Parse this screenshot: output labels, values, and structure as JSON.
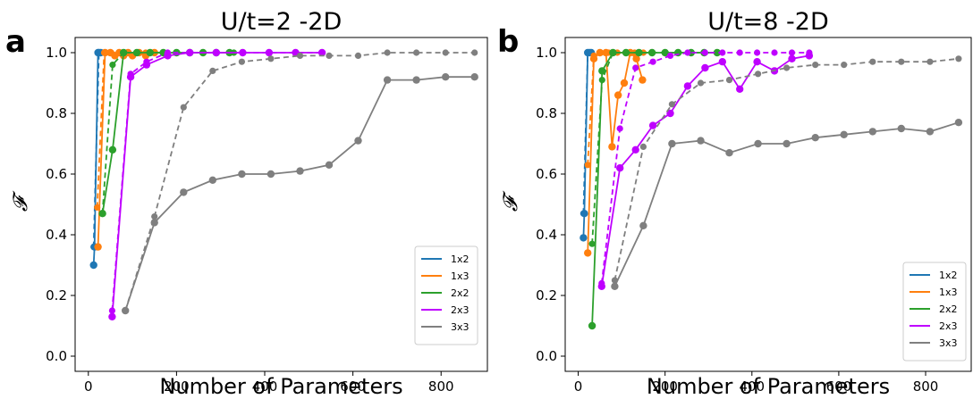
{
  "chart_data": [
    {
      "type": "line",
      "panel_label": "a",
      "title": "U/t=2 -2D",
      "xlabel": "Number of Parameters",
      "ylabel": "𝓕",
      "xlim": [
        -30,
        905
      ],
      "ylim": [
        -0.05,
        1.05
      ],
      "xticks": [
        0,
        200,
        400,
        600,
        800
      ],
      "yticks": [
        0.0,
        0.2,
        0.4,
        0.6,
        0.8,
        1.0
      ],
      "xtick_labels": [
        "0",
        "200",
        "400",
        "600",
        "800"
      ],
      "ytick_labels": [
        "0.0",
        "0.2",
        "0.4",
        "0.6",
        "0.8",
        "1.0"
      ],
      "legend_position": "lower-right",
      "series": [
        {
          "name": "1x2",
          "color": "#1f77b4",
          "solid": [
            [
              12,
              0.3
            ],
            [
              14,
              0.36
            ],
            [
              22,
              1.0
            ],
            [
              24,
              1.0
            ],
            [
              28,
              1.0
            ]
          ],
          "dashed": [
            [
              12,
              0.36
            ],
            [
              24,
              1.0
            ],
            [
              30,
              1.0
            ]
          ]
        },
        {
          "name": "1x3",
          "color": "#ff7f0e",
          "solid": [
            [
              22,
              0.36
            ],
            [
              38,
              1.0
            ],
            [
              50,
              1.0
            ],
            [
              60,
              0.99
            ],
            [
              70,
              1.0
            ],
            [
              80,
              0.99
            ],
            [
              90,
              1.0
            ],
            [
              100,
              0.99
            ],
            [
              115,
              1.0
            ],
            [
              130,
              0.99
            ],
            [
              150,
              1.0
            ]
          ],
          "dashed": [
            [
              20,
              0.49
            ],
            [
              36,
              1.0
            ],
            [
              52,
              1.0
            ],
            [
              70,
              1.0
            ],
            [
              90,
              1.0
            ],
            [
              110,
              1.0
            ],
            [
              130,
              1.0
            ],
            [
              150,
              1.0
            ]
          ]
        },
        {
          "name": "2x2",
          "color": "#2ca02c",
          "solid": [
            [
              32,
              0.47
            ],
            [
              55,
              0.68
            ],
            [
              80,
              1.0
            ],
            [
              110,
              1.0
            ],
            [
              140,
              1.0
            ],
            [
              170,
              1.0
            ],
            [
              200,
              1.0
            ],
            [
              230,
              1.0
            ],
            [
              260,
              1.0
            ],
            [
              290,
              1.0
            ],
            [
              320,
              1.0
            ]
          ],
          "dashed": [
            [
              32,
              0.47
            ],
            [
              55,
              0.96
            ],
            [
              80,
              1.0
            ],
            [
              110,
              1.0
            ],
            [
              140,
              1.0
            ],
            [
              170,
              1.0
            ],
            [
              200,
              1.0
            ],
            [
              230,
              1.0
            ],
            [
              260,
              1.0
            ],
            [
              290,
              1.0
            ],
            [
              320,
              1.0
            ],
            [
              330,
              1.0
            ]
          ]
        },
        {
          "name": "2x3",
          "color": "#bf00ff",
          "solid": [
            [
              54,
              0.13
            ],
            [
              96,
              0.92
            ],
            [
              132,
              0.96
            ],
            [
              180,
              0.99
            ],
            [
              230,
              1.0
            ],
            [
              290,
              1.0
            ],
            [
              350,
              1.0
            ],
            [
              410,
              1.0
            ],
            [
              470,
              1.0
            ],
            [
              530,
              1.0
            ]
          ],
          "dashed": [
            [
              54,
              0.15
            ],
            [
              96,
              0.93
            ],
            [
              132,
              0.97
            ],
            [
              180,
              1.0
            ],
            [
              230,
              1.0
            ],
            [
              290,
              1.0
            ],
            [
              350,
              1.0
            ],
            [
              410,
              1.0
            ],
            [
              470,
              1.0
            ],
            [
              530,
              1.0
            ]
          ]
        },
        {
          "name": "3x3",
          "color": "#7f7f7f",
          "solid": [
            [
              84,
              0.15
            ],
            [
              150,
              0.44
            ],
            [
              216,
              0.54
            ],
            [
              282,
              0.58
            ],
            [
              348,
              0.6
            ],
            [
              414,
              0.6
            ],
            [
              480,
              0.61
            ],
            [
              546,
              0.63
            ],
            [
              612,
              0.71
            ],
            [
              678,
              0.91
            ],
            [
              744,
              0.91
            ],
            [
              810,
              0.92
            ],
            [
              876,
              0.92
            ]
          ],
          "dashed": [
            [
              84,
              0.15
            ],
            [
              150,
              0.46
            ],
            [
              216,
              0.82
            ],
            [
              282,
              0.94
            ],
            [
              348,
              0.97
            ],
            [
              414,
              0.98
            ],
            [
              480,
              0.99
            ],
            [
              546,
              0.99
            ],
            [
              612,
              0.99
            ],
            [
              678,
              1.0
            ],
            [
              744,
              1.0
            ],
            [
              810,
              1.0
            ],
            [
              876,
              1.0
            ]
          ]
        }
      ]
    },
    {
      "type": "line",
      "panel_label": "b",
      "title": "U/t=8 -2D",
      "xlabel": "Number of Parameters",
      "ylabel": "𝓕",
      "xlim": [
        -30,
        905
      ],
      "ylim": [
        -0.05,
        1.05
      ],
      "xticks": [
        0,
        200,
        400,
        600,
        800
      ],
      "yticks": [
        0.0,
        0.2,
        0.4,
        0.6,
        0.8,
        1.0
      ],
      "xtick_labels": [
        "0",
        "200",
        "400",
        "600",
        "800"
      ],
      "ytick_labels": [
        "0.0",
        "0.2",
        "0.4",
        "0.6",
        "0.8",
        "1.0"
      ],
      "legend_position": "lower-right",
      "series": [
        {
          "name": "1x2",
          "color": "#1f77b4",
          "solid": [
            [
              12,
              0.39
            ],
            [
              14,
              0.47
            ],
            [
              22,
              1.0
            ],
            [
              26,
              1.0
            ],
            [
              30,
              1.0
            ]
          ],
          "dashed": [
            [
              12,
              0.47
            ],
            [
              22,
              1.0
            ],
            [
              30,
              1.0
            ]
          ]
        },
        {
          "name": "1x3",
          "color": "#ff7f0e",
          "solid": [
            [
              22,
              0.34
            ],
            [
              36,
              0.98
            ],
            [
              50,
              1.0
            ],
            [
              64,
              1.0
            ],
            [
              78,
              0.69
            ],
            [
              92,
              0.86
            ],
            [
              106,
              0.9
            ],
            [
              120,
              1.0
            ],
            [
              134,
              0.98
            ],
            [
              148,
              0.91
            ]
          ],
          "dashed": [
            [
              22,
              0.63
            ],
            [
              36,
              0.99
            ],
            [
              52,
              1.0
            ],
            [
              70,
              1.0
            ],
            [
              90,
              1.0
            ],
            [
              110,
              1.0
            ],
            [
              130,
              1.0
            ],
            [
              150,
              1.0
            ]
          ]
        },
        {
          "name": "2x2",
          "color": "#2ca02c",
          "solid": [
            [
              32,
              0.1
            ],
            [
              55,
              0.94
            ],
            [
              80,
              1.0
            ],
            [
              110,
              1.0
            ],
            [
              140,
              1.0
            ],
            [
              170,
              1.0
            ],
            [
              200,
              1.0
            ],
            [
              230,
              1.0
            ],
            [
              260,
              1.0
            ],
            [
              290,
              1.0
            ],
            [
              320,
              1.0
            ]
          ],
          "dashed": [
            [
              32,
              0.37
            ],
            [
              55,
              0.91
            ],
            [
              80,
              1.0
            ],
            [
              110,
              1.0
            ],
            [
              140,
              1.0
            ],
            [
              170,
              1.0
            ],
            [
              200,
              1.0
            ],
            [
              230,
              1.0
            ],
            [
              260,
              1.0
            ],
            [
              290,
              1.0
            ],
            [
              320,
              1.0
            ]
          ]
        },
        {
          "name": "2x3",
          "color": "#bf00ff",
          "solid": [
            [
              54,
              0.23
            ],
            [
              96,
              0.62
            ],
            [
              132,
              0.68
            ],
            [
              172,
              0.76
            ],
            [
              212,
              0.8
            ],
            [
              252,
              0.89
            ],
            [
              292,
              0.95
            ],
            [
              332,
              0.97
            ],
            [
              372,
              0.88
            ],
            [
              412,
              0.97
            ],
            [
              452,
              0.94
            ],
            [
              492,
              0.98
            ],
            [
              532,
              0.99
            ]
          ],
          "dashed": [
            [
              54,
              0.24
            ],
            [
              96,
              0.75
            ],
            [
              132,
              0.95
            ],
            [
              172,
              0.97
            ],
            [
              212,
              0.99
            ],
            [
              252,
              1.0
            ],
            [
              292,
              1.0
            ],
            [
              332,
              1.0
            ],
            [
              372,
              1.0
            ],
            [
              412,
              1.0
            ],
            [
              452,
              1.0
            ],
            [
              492,
              1.0
            ],
            [
              532,
              1.0
            ]
          ]
        },
        {
          "name": "3x3",
          "color": "#7f7f7f",
          "solid": [
            [
              84,
              0.23
            ],
            [
              150,
              0.43
            ],
            [
              216,
              0.7
            ],
            [
              282,
              0.71
            ],
            [
              348,
              0.67
            ],
            [
              414,
              0.7
            ],
            [
              480,
              0.7
            ],
            [
              546,
              0.72
            ],
            [
              612,
              0.73
            ],
            [
              678,
              0.74
            ],
            [
              744,
              0.75
            ],
            [
              810,
              0.74
            ],
            [
              876,
              0.77
            ]
          ],
          "dashed": [
            [
              84,
              0.25
            ],
            [
              150,
              0.69
            ],
            [
              216,
              0.83
            ],
            [
              282,
              0.9
            ],
            [
              348,
              0.91
            ],
            [
              414,
              0.93
            ],
            [
              480,
              0.95
            ],
            [
              546,
              0.96
            ],
            [
              612,
              0.96
            ],
            [
              678,
              0.97
            ],
            [
              744,
              0.97
            ],
            [
              810,
              0.97
            ],
            [
              876,
              0.98
            ]
          ]
        }
      ]
    }
  ]
}
